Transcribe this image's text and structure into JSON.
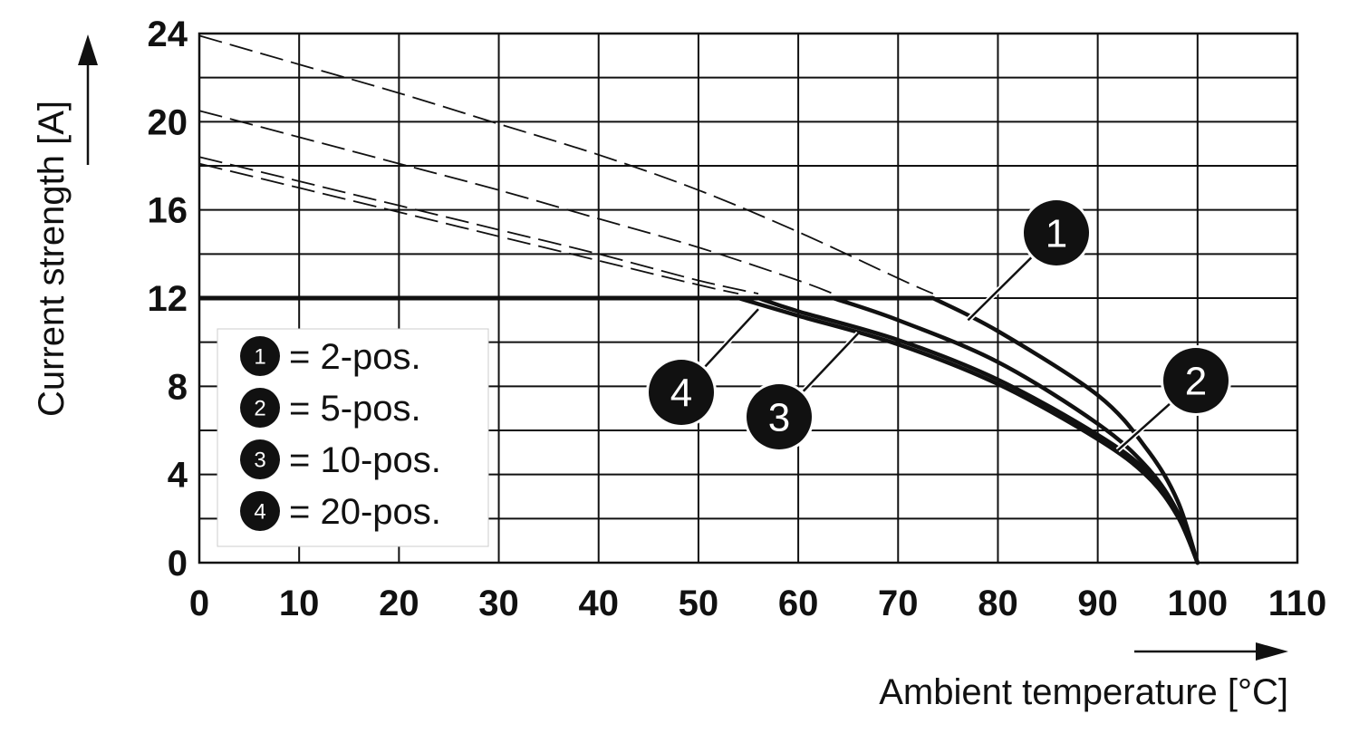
{
  "chart_data": {
    "type": "line",
    "title": "",
    "xlabel": "Ambient temperature [°C]",
    "ylabel": "Current strength [A]",
    "xlim": [
      0,
      110
    ],
    "ylim": [
      0,
      24
    ],
    "x_ticks": [
      0,
      10,
      20,
      30,
      40,
      50,
      60,
      70,
      80,
      90,
      100,
      110
    ],
    "y_ticks": [
      0,
      4,
      8,
      12,
      16,
      20,
      24
    ],
    "grid": true,
    "legend_position": "bottom-left",
    "cap_line": {
      "y": 12
    },
    "series": [
      {
        "name": "2-pos.",
        "badge": "1",
        "theoretical": [
          [
            0,
            23.9
          ],
          [
            10,
            22.6
          ],
          [
            20,
            21.3
          ],
          [
            30,
            19.9
          ],
          [
            40,
            18.5
          ],
          [
            50,
            16.9
          ],
          [
            60,
            15.0
          ],
          [
            70,
            12.9
          ],
          [
            73.5,
            12.2
          ]
        ],
        "derated": [
          [
            73.5,
            12.0
          ],
          [
            80,
            10.5
          ],
          [
            90,
            7.6
          ],
          [
            95,
            5.1
          ],
          [
            98,
            2.8
          ],
          [
            100,
            0
          ]
        ]
      },
      {
        "name": "5-pos.",
        "badge": "2",
        "theoretical": [
          [
            0,
            20.5
          ],
          [
            10,
            19.3
          ],
          [
            20,
            18.1
          ],
          [
            30,
            16.9
          ],
          [
            40,
            15.6
          ],
          [
            50,
            14.3
          ],
          [
            60,
            12.8
          ],
          [
            63.5,
            12.2
          ]
        ],
        "derated": [
          [
            63.5,
            12.0
          ],
          [
            70,
            11.0
          ],
          [
            80,
            9.1
          ],
          [
            90,
            6.3
          ],
          [
            95,
            4.3
          ],
          [
            98,
            2.3
          ],
          [
            100,
            0
          ]
        ]
      },
      {
        "name": "10-pos.",
        "badge": "3",
        "theoretical": [
          [
            0,
            18.4
          ],
          [
            10,
            17.3
          ],
          [
            20,
            16.2
          ],
          [
            30,
            15.1
          ],
          [
            40,
            14.0
          ],
          [
            50,
            12.8
          ],
          [
            56,
            12.2
          ]
        ],
        "derated": [
          [
            56,
            12.0
          ],
          [
            60,
            11.4
          ],
          [
            70,
            10.1
          ],
          [
            80,
            8.3
          ],
          [
            90,
            5.8
          ],
          [
            95,
            4.1
          ],
          [
            98,
            2.2
          ],
          [
            100,
            0
          ]
        ]
      },
      {
        "name": "20-pos.",
        "badge": "4",
        "theoretical": [
          [
            0,
            18.1
          ],
          [
            10,
            17.0
          ],
          [
            20,
            15.9
          ],
          [
            30,
            14.8
          ],
          [
            40,
            13.7
          ],
          [
            50,
            12.6
          ],
          [
            54,
            12.2
          ]
        ],
        "derated": [
          [
            54,
            12.0
          ],
          [
            60,
            11.2
          ],
          [
            70,
            9.9
          ],
          [
            80,
            8.1
          ],
          [
            90,
            5.6
          ],
          [
            95,
            3.9
          ],
          [
            98,
            2.1
          ],
          [
            100,
            0
          ]
        ]
      }
    ],
    "legend": [
      {
        "badge": "1",
        "label": "= 2-pos."
      },
      {
        "badge": "2",
        "label": "= 5-pos."
      },
      {
        "badge": "3",
        "label": "= 10-pos."
      },
      {
        "badge": "4",
        "label": "= 20-pos."
      }
    ],
    "annotations": [
      {
        "badge": "1",
        "points_to": [
          77,
          11.0
        ]
      },
      {
        "badge": "2",
        "points_to": [
          92,
          5.1
        ]
      },
      {
        "badge": "3",
        "points_to": [
          66,
          10.4
        ]
      },
      {
        "badge": "4",
        "points_to": [
          56,
          11.5
        ]
      }
    ],
    "colors": {
      "line": "#111111",
      "grid": "#111111",
      "background": "#ffffff"
    }
  }
}
